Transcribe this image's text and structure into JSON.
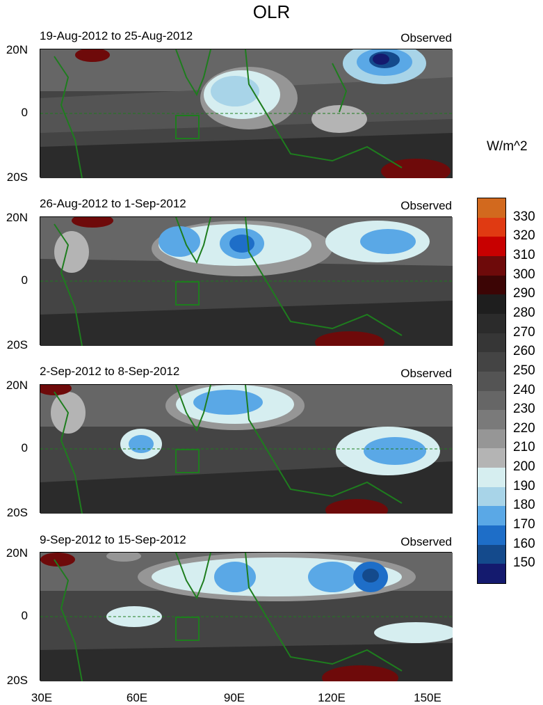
{
  "title": "OLR",
  "units": "W/m^2",
  "y_labels": [
    "20N",
    "0",
    "20S"
  ],
  "x_labels": [
    "30E",
    "60E",
    "90E",
    "120E",
    "150E"
  ],
  "panels": [
    {
      "period": "19-Aug-2012 to 25-Aug-2012",
      "label": "Observed"
    },
    {
      "period": "26-Aug-2012 to 1-Sep-2012",
      "label": "Observed"
    },
    {
      "period": "2-Sep-2012 to 8-Sep-2012",
      "label": "Observed"
    },
    {
      "period": "9-Sep-2012 to 15-Sep-2012",
      "label": "Observed"
    }
  ],
  "colorbar": {
    "levels": [
      "330",
      "320",
      "310",
      "300",
      "290",
      "280",
      "270",
      "260",
      "250",
      "240",
      "230",
      "220",
      "210",
      "200",
      "190",
      "180",
      "170",
      "160",
      "150"
    ],
    "colors": [
      "#d2691e",
      "#e03a12",
      "#c80000",
      "#6e0a0a",
      "#3c0505",
      "#1e1e1e",
      "#2b2b2b",
      "#363636",
      "#444444",
      "#545454",
      "#666666",
      "#7a7a7a",
      "#969696",
      "#b4b4b4",
      "#d6eef0",
      "#a8d4e8",
      "#5aa8e6",
      "#1e6ec8",
      "#144a8c",
      "#141a6e"
    ]
  },
  "colors": {
    "coast": "#1e7d1e",
    "deep_convection": "#141a6e",
    "land_hot": "#6e0a0a"
  }
}
